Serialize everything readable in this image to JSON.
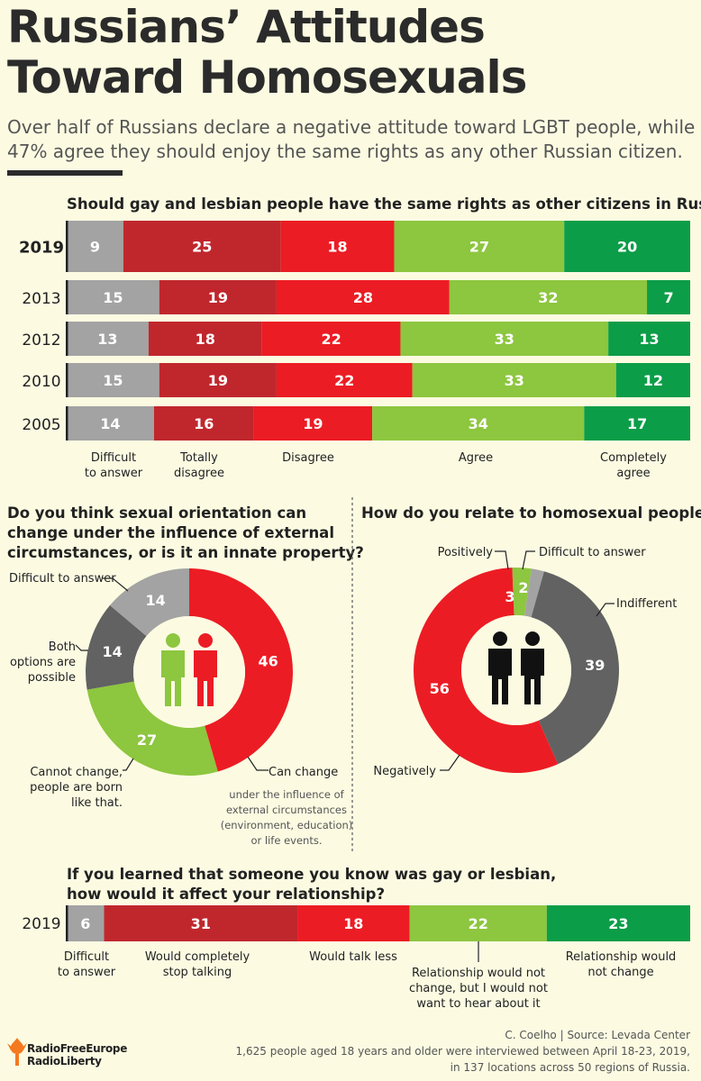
{
  "title_line1": "Russians’ Attitudes",
  "title_line2": "Toward Homosexuals",
  "subtitle": "Over half of Russians declare a negative attitude toward LGBT people, while 47% agree they should enjoy the same rights as any other Russian citizen.",
  "colors": {
    "difficult": "#a3a3a3",
    "totally_disagree": "#c0272d",
    "disagree": "#ec1c24",
    "agree": "#8dc63f",
    "completely_agree": "#0c9d48",
    "indifferent": "#626262",
    "background": "#fcfbe2"
  },
  "chart_data": [
    {
      "type": "bar",
      "orientation": "horizontal-stacked-100",
      "title": "Should gay and lesbian people have the same rights as other citizens in Russia?",
      "categories": [
        "2019",
        "2013",
        "2012",
        "2010",
        "2005"
      ],
      "series": [
        {
          "name": "Difficult to answer",
          "values": [
            9,
            15,
            13,
            15,
            14
          ]
        },
        {
          "name": "Totally disagree",
          "values": [
            25,
            19,
            18,
            19,
            16
          ]
        },
        {
          "name": "Disagree",
          "values": [
            18,
            28,
            22,
            22,
            19
          ]
        },
        {
          "name": "Agree",
          "values": [
            27,
            32,
            33,
            33,
            34
          ]
        },
        {
          "name": "Completely agree",
          "values": [
            20,
            7,
            13,
            12,
            17
          ]
        }
      ],
      "legend_labels": [
        "Difficult\nto answer",
        "Totally\ndisagree",
        "Disagree",
        "Agree",
        "Completely\nagree"
      ]
    },
    {
      "type": "pie",
      "title_lines": [
        "Do you think sexual orientation can",
        "change under the influence of external",
        "circumstances, or is it an innate property?"
      ],
      "slices": [
        {
          "name": "Can change",
          "value": 46
        },
        {
          "name": "Cannot change, people are born like that.",
          "value": 27
        },
        {
          "name": "Both options are possible",
          "value": 14
        },
        {
          "name": "Difficult to answer",
          "value": 14
        }
      ],
      "label_lines": {
        "can_change": [
          "Can change"
        ],
        "cannot_change": [
          "Cannot change,",
          "people are born",
          "like that."
        ],
        "both": [
          "Both",
          "options are",
          "possible"
        ],
        "difficult": [
          "Difficult to answer"
        ]
      },
      "note_lines": [
        "under the influence of",
        "external circumstances",
        "(environment, education)",
        "or life events."
      ]
    },
    {
      "type": "pie",
      "title": "How do you relate to homosexual people?",
      "slices": [
        {
          "name": "Positively",
          "value": 3
        },
        {
          "name": "Difficult to answer",
          "value": 2
        },
        {
          "name": "Indifferent",
          "value": 39
        },
        {
          "name": "Negatively",
          "value": 56
        }
      ]
    },
    {
      "type": "bar",
      "orientation": "horizontal-stacked-100",
      "title_lines": [
        "If you learned that someone you know was gay or lesbian,",
        "how would it affect your relationship?"
      ],
      "categories": [
        "2019"
      ],
      "series": [
        {
          "name": "Difficult to answer",
          "values": [
            6
          ]
        },
        {
          "name": "Would completely stop talking",
          "values": [
            31
          ]
        },
        {
          "name": "Would talk less",
          "values": [
            18
          ]
        },
        {
          "name": "Relationship would not change, but I would not want to hear about it",
          "values": [
            22
          ]
        },
        {
          "name": "Relationship would not change",
          "values": [
            23
          ]
        }
      ],
      "label_lines": [
        [
          "Difficult",
          "to answer"
        ],
        [
          "Would completely",
          "stop talking"
        ],
        [
          "Would talk less"
        ],
        [
          "Relationship would not",
          "change, but I would not",
          "want to hear about it"
        ],
        [
          "Relationship would",
          "not change"
        ]
      ]
    }
  ],
  "credit_line1": "C. Coelho | Source: Levada Center",
  "credit_line2": "1,625 people aged 18 years and older were interviewed between April 18-23, 2019,",
  "credit_line3": "in 137 locations across 50 regions of Russia.",
  "logo_line1": "RadioFreeEurope",
  "logo_line2": "RadioLiberty"
}
